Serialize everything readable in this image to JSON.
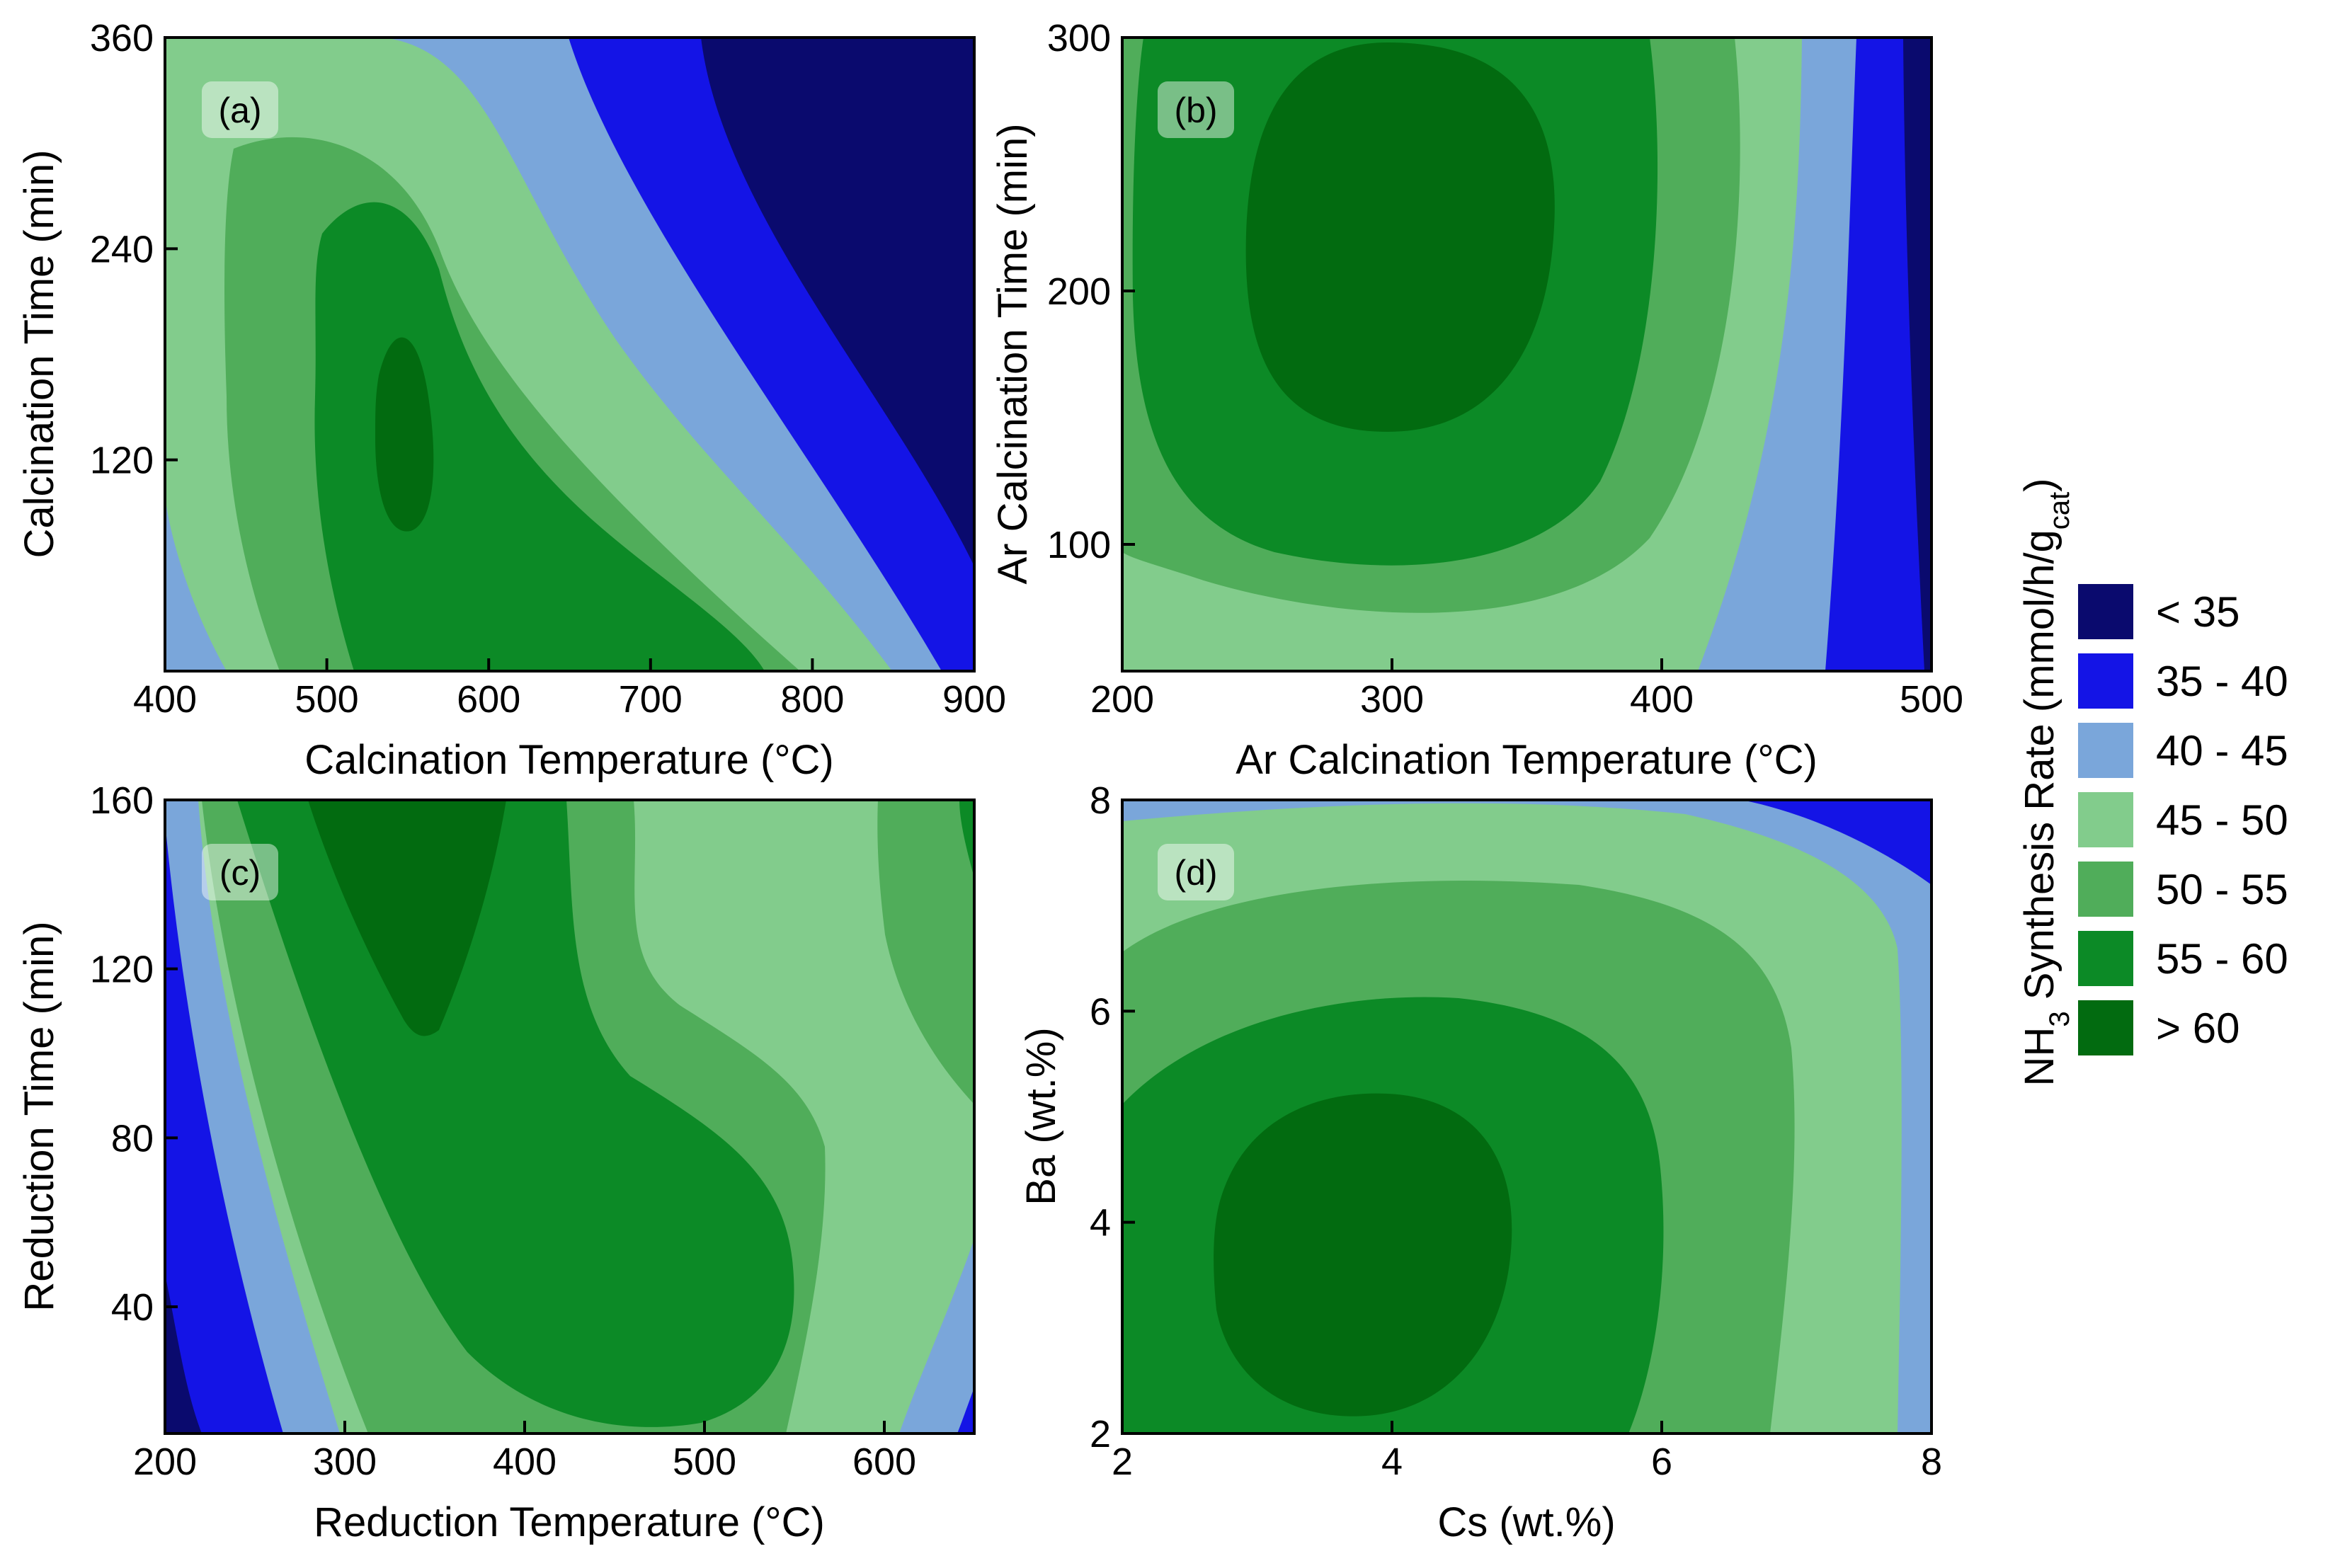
{
  "colors": {
    "lt35": "#0a0a6e",
    "c35_40": "#1414e6",
    "c40_45": "#7aa6da",
    "c45_50": "#82cc8c",
    "c50_55": "#50ad5a",
    "c55_60": "#0c8a26",
    "gt60": "#026b10",
    "axis": "#000000",
    "tag_bg": "#ffffff"
  },
  "legend": {
    "title_prefix": "NH",
    "title_sub3": "3",
    "title_mid": " Synthesis Rate (mmol/h/g",
    "title_subcat": "cat",
    "title_suffix": ")",
    "items": [
      {
        "label": "< 35",
        "color_key": "lt35"
      },
      {
        "label": "35 - 40",
        "color_key": "c35_40"
      },
      {
        "label": "40 - 45",
        "color_key": "c40_45"
      },
      {
        "label": "45 - 50",
        "color_key": "c45_50"
      },
      {
        "label": "50 - 55",
        "color_key": "c50_55"
      },
      {
        "label": "55 - 60",
        "color_key": "c55_60"
      },
      {
        "label": "> 60",
        "color_key": "gt60"
      }
    ]
  },
  "chart_data": [
    {
      "type": "contour",
      "panel": "(a)",
      "xlabel": "Calcination Temperature (°C)",
      "ylabel": "Calcination Time (min)",
      "xlim": [
        400,
        900
      ],
      "ylim": [
        0,
        360
      ],
      "xticks": [
        "400",
        "500",
        "600",
        "700",
        "800",
        "900"
      ],
      "yticks": [
        "120",
        "240",
        "360"
      ],
      "levels": [
        "< 35",
        "35 - 40",
        "40 - 45",
        "45 - 50",
        "50 - 55",
        "55 - 60",
        "> 60"
      ],
      "maximum": {
        "x": 550,
        "y": 140,
        "level": "> 60"
      }
    },
    {
      "type": "contour",
      "panel": "(b)",
      "xlabel": "Ar Calcination Temperature (°C)",
      "ylabel": "Ar Calcination Time (min)",
      "xlim": [
        200,
        500
      ],
      "ylim": [
        50,
        300
      ],
      "xticks": [
        "200",
        "300",
        "400",
        "500"
      ],
      "yticks": [
        "100",
        "200",
        "300"
      ],
      "levels": [
        "< 35",
        "35 - 40",
        "40 - 45",
        "45 - 50",
        "50 - 55",
        "55 - 60",
        "> 60"
      ],
      "maximum": {
        "x": 300,
        "y": 215,
        "level": "> 60"
      }
    },
    {
      "type": "contour",
      "panel": "(c)",
      "xlabel": "Reduction Temperature (°C)",
      "ylabel": "Reduction Time (min)",
      "xlim": [
        200,
        650
      ],
      "ylim": [
        10,
        160
      ],
      "xticks": [
        "200",
        "300",
        "400",
        "500",
        "600"
      ],
      "yticks": [
        "40",
        "80",
        "120",
        "160"
      ],
      "levels": [
        "< 35",
        "35 - 40",
        "40 - 45",
        "45 - 50",
        "50 - 55",
        "55 - 60",
        "> 60"
      ],
      "maximum": {
        "x": 350,
        "y": 140,
        "level": "> 60"
      }
    },
    {
      "type": "contour",
      "panel": "(d)",
      "xlabel": "Cs (wt.%)",
      "ylabel": "Ba (wt.%)",
      "xlim": [
        2,
        8
      ],
      "ylim": [
        2,
        8
      ],
      "xticks": [
        "2",
        "4",
        "6",
        "8"
      ],
      "yticks": [
        "2",
        "4",
        "6",
        "8"
      ],
      "levels": [
        "< 35",
        "35 - 40",
        "40 - 45",
        "45 - 50",
        "50 - 55",
        "55 - 60",
        "> 60"
      ],
      "maximum": {
        "x": 4,
        "y": 3.8,
        "level": "> 60"
      }
    }
  ]
}
